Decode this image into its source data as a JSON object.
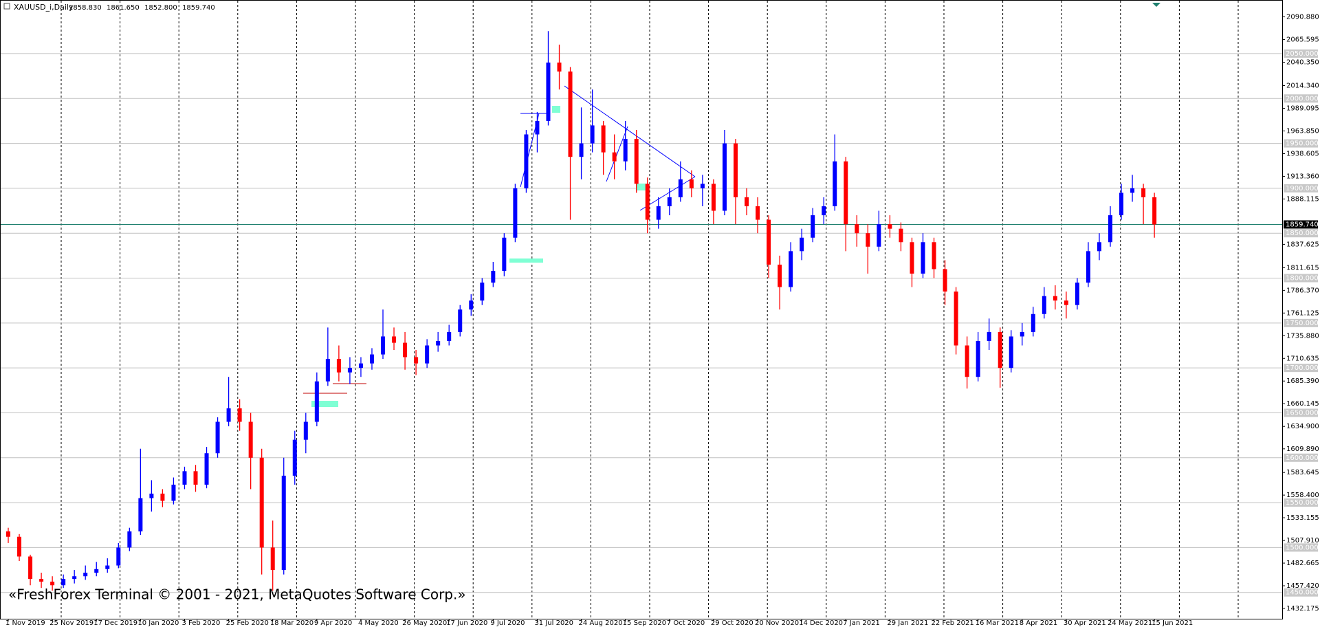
{
  "chart_data": {
    "type": "candlestick",
    "title": "XAUUSD_i,Daily",
    "header_values": [
      {
        "value": 1858.83,
        "label": "1858.830"
      },
      {
        "value": 1861.65,
        "label": "1861.650"
      },
      {
        "value": 1852.8,
        "label": "1852.800"
      },
      {
        "value": 1859.74,
        "label": "1859.740"
      }
    ],
    "watermark": "«FreshForex Terminal © 2001 - 2021, MetaQuotes Software Corp.»",
    "up_color": "#0000ff",
    "down_color": "#ff0000",
    "ylim": [
      1420.7,
      2106.6
    ],
    "yticks": [
      {
        "value": 2090.88,
        "label": "2090.880"
      },
      {
        "value": 2065.595,
        "label": "2065.595"
      },
      {
        "value": 2040.35,
        "label": "2040.350"
      },
      {
        "value": 2014.34,
        "label": "2014.340"
      },
      {
        "value": 1989.095,
        "label": "1989.095"
      },
      {
        "value": 1963.85,
        "label": "1963.850"
      },
      {
        "value": 1938.605,
        "label": "1938.605"
      },
      {
        "value": 1913.36,
        "label": "1913.360"
      },
      {
        "value": 1888.115,
        "label": "1888.115"
      },
      {
        "value": 1837.625,
        "label": "1837.625"
      },
      {
        "value": 1811.615,
        "label": "1811.615"
      },
      {
        "value": 1786.37,
        "label": "1786.370"
      },
      {
        "value": 1761.125,
        "label": "1761.125"
      },
      {
        "value": 1735.88,
        "label": "1735.880"
      },
      {
        "value": 1710.635,
        "label": "1710.635"
      },
      {
        "value": 1685.39,
        "label": "1685.390"
      },
      {
        "value": 1660.145,
        "label": "1660.145"
      },
      {
        "value": 1634.9,
        "label": "1634.900"
      },
      {
        "value": 1609.89,
        "label": "1609.890"
      },
      {
        "value": 1583.645,
        "label": "1583.645"
      },
      {
        "value": 1558.4,
        "label": "1558.400"
      },
      {
        "value": 1533.155,
        "label": "1533.155"
      },
      {
        "value": 1507.91,
        "label": "1507.910"
      },
      {
        "value": 1482.665,
        "label": "1482.665"
      },
      {
        "value": 1457.42,
        "label": "1457.420"
      },
      {
        "value": 1432.175,
        "label": "1432.175"
      }
    ],
    "levels": [
      {
        "value": 2050,
        "label": "2050.000"
      },
      {
        "value": 2000,
        "label": "2000.000"
      },
      {
        "value": 1950,
        "label": "1950.000"
      },
      {
        "value": 1900,
        "label": "1900.000"
      },
      {
        "value": 1850,
        "label": "1850.000"
      },
      {
        "value": 1800,
        "label": "1800.000"
      },
      {
        "value": 1750,
        "label": "1750.000"
      },
      {
        "value": 1700,
        "label": "1700.000"
      },
      {
        "value": 1650,
        "label": "1650.000"
      },
      {
        "value": 1600,
        "label": "1600.000"
      },
      {
        "value": 1550,
        "label": "1550.000"
      },
      {
        "value": 1500,
        "label": "1500.000"
      },
      {
        "value": 1450,
        "label": "1450.000"
      }
    ],
    "current_price": {
      "value": 1859.74,
      "label": "1859.740"
    },
    "categories": [
      "1 Nov 2019",
      null,
      null,
      null,
      "25 Nov 2019",
      null,
      null,
      null,
      "17 Dec 2019",
      null,
      null,
      null,
      "10 Jan 2020",
      null,
      null,
      null,
      "3 Feb 2020",
      null,
      null,
      null,
      "25 Feb 2020",
      null,
      null,
      null,
      "18 Mar 2020",
      null,
      null,
      null,
      "9 Apr 2020",
      null,
      null,
      null,
      "4 May 2020",
      null,
      null,
      null,
      "26 May 2020",
      null,
      null,
      null,
      "17 Jun 2020",
      null,
      null,
      null,
      "9 Jul 2020",
      null,
      null,
      null,
      "31 Jul 2020",
      null,
      null,
      null,
      "24 Aug 2020",
      null,
      null,
      null,
      "15 Sep 2020",
      null,
      null,
      null,
      "7 Oct 2020",
      null,
      null,
      null,
      "29 Oct 2020",
      null,
      null,
      null,
      "20 Nov 2020",
      null,
      null,
      null,
      "14 Dec 2020",
      null,
      null,
      null,
      "7 Jan 2021",
      null,
      null,
      null,
      "29 Jan 2021",
      null,
      null,
      null,
      "22 Feb 2021",
      null,
      null,
      null,
      "16 Mar 2021",
      null,
      null,
      null,
      "8 Apr 2021",
      null,
      null,
      null,
      "30 Apr 2021",
      null,
      null,
      null,
      "24 May 2021",
      null,
      null,
      null,
      "15 Jun 2021"
    ],
    "candles": [
      [
        1518,
        1522,
        1505,
        1512
      ],
      [
        1512,
        1515,
        1485,
        1490
      ],
      [
        1490,
        1492,
        1458,
        1465
      ],
      [
        1465,
        1472,
        1455,
        1462
      ],
      [
        1462,
        1468,
        1452,
        1458
      ],
      [
        1458,
        1470,
        1455,
        1465
      ],
      [
        1465,
        1475,
        1460,
        1468
      ],
      [
        1468,
        1480,
        1464,
        1472
      ],
      [
        1472,
        1484,
        1468,
        1476
      ],
      [
        1476,
        1488,
        1472,
        1480
      ],
      [
        1480,
        1505,
        1477,
        1500
      ],
      [
        1500,
        1522,
        1496,
        1518
      ],
      [
        1518,
        1610,
        1514,
        1555
      ],
      [
        1555,
        1575,
        1540,
        1560
      ],
      [
        1560,
        1565,
        1545,
        1552
      ],
      [
        1552,
        1578,
        1548,
        1570
      ],
      [
        1570,
        1590,
        1565,
        1585
      ],
      [
        1585,
        1592,
        1562,
        1570
      ],
      [
        1570,
        1612,
        1566,
        1605
      ],
      [
        1605,
        1645,
        1600,
        1640
      ],
      [
        1640,
        1690,
        1635,
        1655
      ],
      [
        1655,
        1665,
        1630,
        1640
      ],
      [
        1640,
        1650,
        1565,
        1600
      ],
      [
        1600,
        1610,
        1470,
        1500
      ],
      [
        1500,
        1530,
        1452,
        1475
      ],
      [
        1475,
        1600,
        1470,
        1580
      ],
      [
        1580,
        1630,
        1570,
        1620
      ],
      [
        1620,
        1650,
        1605,
        1640
      ],
      [
        1640,
        1695,
        1635,
        1685
      ],
      [
        1685,
        1745,
        1680,
        1710
      ],
      [
        1710,
        1725,
        1685,
        1695
      ],
      [
        1695,
        1712,
        1682,
        1700
      ],
      [
        1700,
        1712,
        1690,
        1705
      ],
      [
        1705,
        1722,
        1698,
        1715
      ],
      [
        1715,
        1765,
        1710,
        1735
      ],
      [
        1735,
        1745,
        1720,
        1728
      ],
      [
        1728,
        1740,
        1698,
        1712
      ],
      [
        1712,
        1720,
        1692,
        1705
      ],
      [
        1705,
        1732,
        1700,
        1725
      ],
      [
        1725,
        1740,
        1718,
        1730
      ],
      [
        1730,
        1748,
        1725,
        1740
      ],
      [
        1740,
        1770,
        1735,
        1765
      ],
      [
        1765,
        1782,
        1758,
        1775
      ],
      [
        1775,
        1800,
        1770,
        1795
      ],
      [
        1795,
        1818,
        1790,
        1808
      ],
      [
        1808,
        1850,
        1802,
        1845
      ],
      [
        1845,
        1905,
        1840,
        1900
      ],
      [
        1900,
        1965,
        1895,
        1960
      ],
      [
        1960,
        1985,
        1940,
        1975
      ],
      [
        1975,
        2075,
        1970,
        2040
      ],
      [
        2040,
        2060,
        2010,
        2030
      ],
      [
        2030,
        2035,
        1865,
        1935
      ],
      [
        1935,
        1990,
        1910,
        1950
      ],
      [
        1950,
        2010,
        1940,
        1970
      ],
      [
        1970,
        1975,
        1915,
        1940
      ],
      [
        1940,
        1960,
        1910,
        1930
      ],
      [
        1930,
        1975,
        1920,
        1955
      ],
      [
        1955,
        1965,
        1895,
        1905
      ],
      [
        1905,
        1912,
        1850,
        1865
      ],
      [
        1865,
        1890,
        1855,
        1880
      ],
      [
        1880,
        1900,
        1870,
        1890
      ],
      [
        1890,
        1930,
        1885,
        1910
      ],
      [
        1910,
        1920,
        1890,
        1900
      ],
      [
        1900,
        1915,
        1880,
        1905
      ],
      [
        1905,
        1910,
        1860,
        1875
      ],
      [
        1875,
        1965,
        1870,
        1950
      ],
      [
        1950,
        1955,
        1860,
        1890
      ],
      [
        1890,
        1900,
        1870,
        1880
      ],
      [
        1880,
        1890,
        1850,
        1865
      ],
      [
        1865,
        1870,
        1800,
        1815
      ],
      [
        1815,
        1825,
        1765,
        1790
      ],
      [
        1790,
        1840,
        1785,
        1830
      ],
      [
        1830,
        1855,
        1820,
        1845
      ],
      [
        1845,
        1878,
        1840,
        1870
      ],
      [
        1870,
        1890,
        1860,
        1880
      ],
      [
        1880,
        1960,
        1875,
        1930
      ],
      [
        1930,
        1935,
        1830,
        1860
      ],
      [
        1860,
        1870,
        1835,
        1850
      ],
      [
        1850,
        1860,
        1805,
        1835
      ],
      [
        1835,
        1875,
        1830,
        1860
      ],
      [
        1860,
        1870,
        1845,
        1855
      ],
      [
        1855,
        1862,
        1830,
        1840
      ],
      [
        1840,
        1845,
        1790,
        1805
      ],
      [
        1805,
        1850,
        1800,
        1840
      ],
      [
        1840,
        1845,
        1800,
        1810
      ],
      [
        1810,
        1820,
        1770,
        1785
      ],
      [
        1785,
        1790,
        1715,
        1725
      ],
      [
        1725,
        1735,
        1677,
        1690
      ],
      [
        1690,
        1740,
        1685,
        1730
      ],
      [
        1730,
        1755,
        1720,
        1740
      ],
      [
        1740,
        1745,
        1678,
        1700
      ],
      [
        1700,
        1742,
        1695,
        1735
      ],
      [
        1735,
        1750,
        1725,
        1740
      ],
      [
        1740,
        1768,
        1735,
        1760
      ],
      [
        1760,
        1790,
        1755,
        1780
      ],
      [
        1780,
        1792,
        1765,
        1775
      ],
      [
        1775,
        1785,
        1755,
        1770
      ],
      [
        1770,
        1800,
        1765,
        1795
      ],
      [
        1795,
        1840,
        1790,
        1830
      ],
      [
        1830,
        1850,
        1820,
        1840
      ],
      [
        1840,
        1880,
        1835,
        1870
      ],
      [
        1870,
        1905,
        1865,
        1895
      ],
      [
        1895,
        1915,
        1885,
        1900
      ],
      [
        1900,
        1905,
        1860,
        1890
      ],
      [
        1890,
        1895,
        1845,
        1859.74
      ]
    ]
  }
}
